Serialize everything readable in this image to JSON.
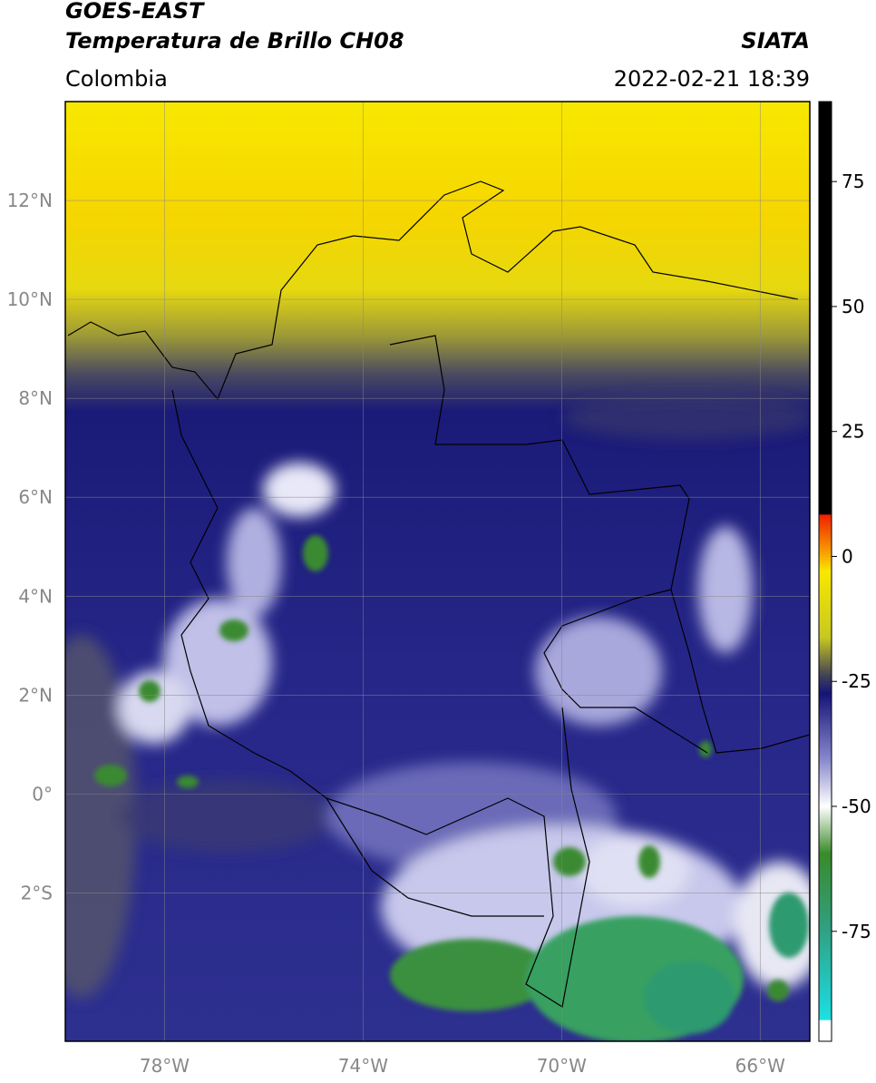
{
  "header": {
    "title_line1": "GOES-EAST",
    "title_line2": "Temperatura de Brillo CH08",
    "source": "SIATA",
    "region": "Colombia",
    "datetime": "2022-02-21 18:39"
  },
  "map": {
    "xlim": [
      -80,
      -65
    ],
    "ylim": [
      -5,
      14
    ],
    "lat_ticks": [
      {
        "value": 12,
        "label": "12°N"
      },
      {
        "value": 10,
        "label": "10°N"
      },
      {
        "value": 8,
        "label": "8°N"
      },
      {
        "value": 6,
        "label": "6°N"
      },
      {
        "value": 4,
        "label": "4°N"
      },
      {
        "value": 2,
        "label": "2°N"
      },
      {
        "value": 0,
        "label": "0°"
      },
      {
        "value": -2,
        "label": "2°S"
      }
    ],
    "lon_ticks": [
      {
        "value": -78,
        "label": "78°W"
      },
      {
        "value": -74,
        "label": "74°W"
      },
      {
        "value": -70,
        "label": "70°W"
      },
      {
        "value": -66,
        "label": "66°W"
      }
    ],
    "grid": true
  },
  "colorbar": {
    "lim": [
      -97,
      91
    ],
    "ticks": [
      75,
      50,
      25,
      0,
      -25,
      -50,
      -75
    ]
  }
}
